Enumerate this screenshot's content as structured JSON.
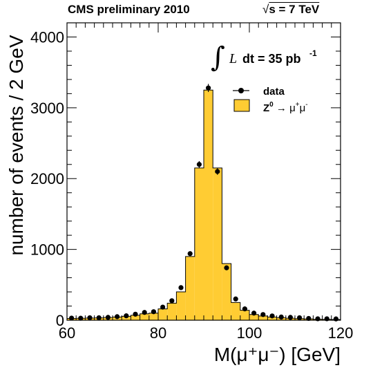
{
  "header": {
    "left": "CMS preliminary 2010",
    "sqrt_symbol": "√",
    "energy": "s = 7 TeV"
  },
  "chart_data": {
    "type": "bar",
    "title": "",
    "xlabel": "M(μ⁺μ⁻) [GeV]",
    "ylabel": "number of events / 2 GeV",
    "xlim": [
      60,
      120
    ],
    "ylim": [
      0,
      4200
    ],
    "bin_width": 2,
    "xticks": [
      60,
      80,
      100,
      120
    ],
    "xtick_labels": [
      "60",
      "80",
      "100",
      "120"
    ],
    "yticks": [
      0,
      1000,
      2000,
      3000,
      4000
    ],
    "ytick_labels": [
      "0",
      "1000",
      "2000",
      "3000",
      "4000"
    ],
    "grid": false,
    "legend_position": "top-right",
    "luminosity": {
      "integral_symbol": "∫",
      "italic_L": "L",
      "text": "dt = 35 pb",
      "exponent": "-1"
    },
    "colors": {
      "histogram_fill": "#ffcc33",
      "histogram_edge": "#000000",
      "data_marker": "#000000"
    },
    "series": [
      {
        "name": "data",
        "kind": "points",
        "bin_centers": [
          61,
          63,
          65,
          67,
          69,
          71,
          73,
          75,
          77,
          79,
          81,
          83,
          85,
          87,
          89,
          91,
          93,
          95,
          97,
          99,
          101,
          103,
          105,
          107,
          109,
          111,
          113,
          115,
          117,
          119
        ],
        "values": [
          30,
          28,
          35,
          35,
          40,
          50,
          62,
          85,
          110,
          120,
          185,
          275,
          460,
          940,
          2200,
          3280,
          2100,
          740,
          300,
          160,
          100,
          80,
          60,
          45,
          40,
          35,
          25,
          20,
          20,
          18
        ],
        "errors": [
          5,
          5,
          6,
          6,
          6,
          7,
          8,
          9,
          10,
          11,
          14,
          17,
          21,
          31,
          47,
          57,
          46,
          27,
          17,
          13,
          10,
          9,
          8,
          7,
          6,
          6,
          5,
          4,
          4,
          4
        ]
      },
      {
        "name": "Z⁰ → μ⁺μ⁻",
        "kind": "histogram",
        "bin_lows": [
          60,
          62,
          64,
          66,
          68,
          70,
          72,
          74,
          76,
          78,
          80,
          82,
          84,
          86,
          88,
          90,
          92,
          94,
          96,
          98,
          100,
          102,
          104,
          106,
          108,
          110,
          112,
          114,
          116,
          118
        ],
        "values": [
          25,
          27,
          30,
          33,
          38,
          45,
          55,
          70,
          90,
          100,
          160,
          240,
          400,
          900,
          2150,
          3250,
          2150,
          800,
          250,
          140,
          80,
          60,
          45,
          35,
          28,
          22,
          18,
          14,
          12,
          10
        ]
      }
    ],
    "legend": [
      {
        "label": "data",
        "symbol": "marker"
      },
      {
        "label_base": "Z",
        "label_sup": "0",
        "label_arrow": " → μ",
        "label_sup2": "+",
        "label_mu2": "μ",
        "label_sup3": "-",
        "symbol": "box"
      }
    ]
  }
}
